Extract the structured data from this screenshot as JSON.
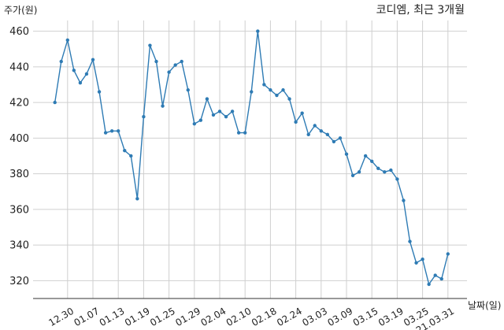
{
  "chart_data": {
    "type": "line",
    "title": "코디엠, 최근 3개월",
    "xlabel": "날짜(일)",
    "ylabel": "주가(원)",
    "ylim": [
      310,
      466
    ],
    "yticks": [
      320,
      340,
      360,
      380,
      400,
      420,
      440,
      460
    ],
    "xticks": [
      {
        "label": "12.30",
        "index": 2
      },
      {
        "label": "01.07",
        "index": 6
      },
      {
        "label": "01.13",
        "index": 10
      },
      {
        "label": "01.19",
        "index": 14
      },
      {
        "label": "01.25",
        "index": 18
      },
      {
        "label": "01.29",
        "index": 22
      },
      {
        "label": "02.04",
        "index": 26
      },
      {
        "label": "02.10",
        "index": 30
      },
      {
        "label": "02.18",
        "index": 34
      },
      {
        "label": "02.24",
        "index": 38
      },
      {
        "label": "03.03",
        "index": 42
      },
      {
        "label": "03.09",
        "index": 46
      },
      {
        "label": "03.15",
        "index": 50
      },
      {
        "label": "03.19",
        "index": 54
      },
      {
        "label": "03.25",
        "index": 58
      },
      {
        "label": "21.03.31",
        "index": 62
      }
    ],
    "grid": true,
    "color": "#2e7bb4",
    "series": [
      {
        "values": [
          420,
          443,
          455,
          438,
          431,
          436,
          444,
          426,
          403,
          404,
          404,
          393,
          390,
          366,
          412,
          452,
          443,
          418,
          437,
          441,
          443,
          427,
          408,
          410,
          422,
          413,
          415,
          412,
          415,
          403,
          403,
          426,
          460,
          430,
          427,
          424,
          427,
          422,
          409,
          414,
          402,
          407,
          404,
          402,
          398,
          400,
          391,
          379,
          381,
          390,
          387,
          383,
          381,
          382,
          377,
          365,
          342,
          330,
          332,
          318,
          323,
          321,
          335
        ]
      }
    ]
  }
}
